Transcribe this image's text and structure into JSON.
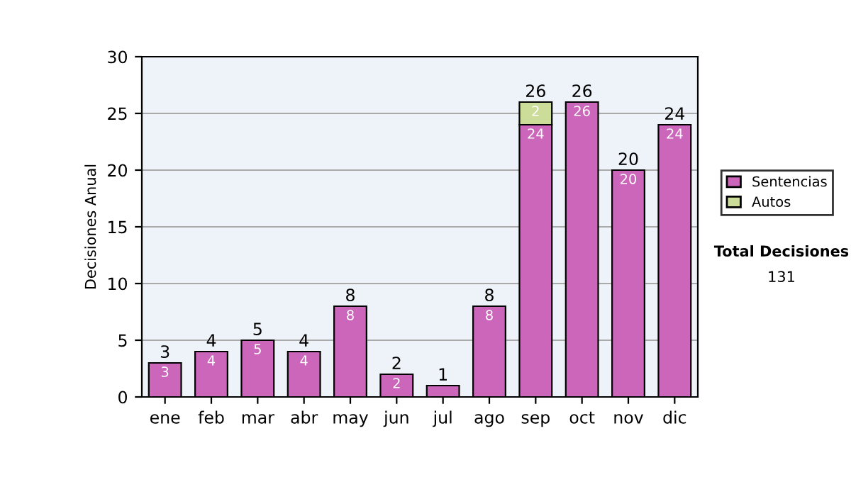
{
  "chart_data": {
    "type": "bar",
    "ylabel": "Decisiones Anual",
    "categories": [
      "ene",
      "feb",
      "mar",
      "abr",
      "may",
      "jun",
      "jul",
      "ago",
      "sep",
      "oct",
      "nov",
      "dic"
    ],
    "stacked": true,
    "series": [
      {
        "name": "Sentencias",
        "color": "#cc66bb",
        "values": [
          3,
          4,
          5,
          4,
          8,
          2,
          1,
          8,
          24,
          26,
          20,
          24
        ],
        "value_labels": [
          "3",
          "4",
          "5",
          "4",
          "8",
          "2",
          null,
          "8",
          "24",
          "26",
          "20",
          "24"
        ]
      },
      {
        "name": "Autos",
        "color": "#ccdd99",
        "values": [
          null,
          null,
          null,
          null,
          null,
          null,
          null,
          null,
          2,
          null,
          null,
          null
        ],
        "value_labels": [
          null,
          null,
          null,
          null,
          null,
          null,
          null,
          null,
          "2",
          null,
          null,
          null
        ]
      }
    ],
    "totals": [
      "3",
      "4",
      "5",
      "4",
      "8",
      "2",
      "1",
      "8",
      "26",
      "26",
      "20",
      "24"
    ],
    "ylim": [
      0,
      30
    ],
    "yticks": [
      0,
      5,
      10,
      15,
      20,
      25,
      30
    ],
    "grid": "y",
    "legend": "right",
    "annotations": [
      "Total Decisiones",
      "131"
    ]
  }
}
